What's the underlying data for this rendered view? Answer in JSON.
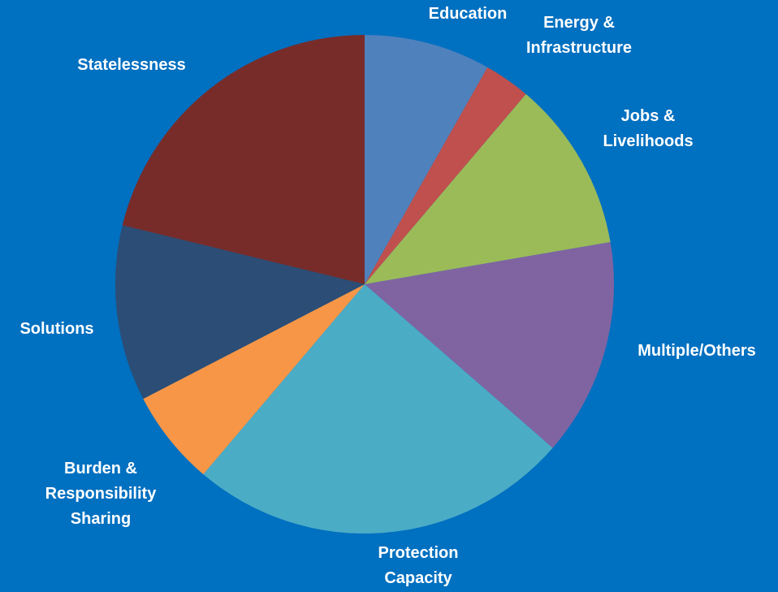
{
  "chart_data": {
    "type": "pie",
    "title": "",
    "start_angle_deg": 0,
    "direction": "clockwise",
    "background": "#0070C0",
    "label_color": "#FFFFFF",
    "slices": [
      {
        "name": "Education",
        "label_lines": [
          "Education"
        ],
        "value": 8.2,
        "color": "#4F81BD"
      },
      {
        "name": "Energy & Infrastructure",
        "label_lines": [
          "Energy &",
          "Infrastructure"
        ],
        "value": 3.0,
        "color": "#C0504D"
      },
      {
        "name": "Jobs & Livelihoods",
        "label_lines": [
          "Jobs &",
          "Livelihoods"
        ],
        "value": 11.1,
        "color": "#9BBB59"
      },
      {
        "name": "Multiple/Others",
        "label_lines": [
          "Multiple/Others"
        ],
        "value": 14.1,
        "color": "#8064A2"
      },
      {
        "name": "Protection Capacity",
        "label_lines": [
          "Protection",
          "Capacity"
        ],
        "value": 24.8,
        "color": "#4BACC6"
      },
      {
        "name": "Burden & Responsibility Sharing",
        "label_lines": [
          "Burden &",
          "Responsibility",
          "Sharing"
        ],
        "value": 6.2,
        "color": "#F79646"
      },
      {
        "name": "Solutions",
        "label_lines": [
          "Solutions"
        ],
        "value": 11.4,
        "color": "#2C4D75"
      },
      {
        "name": "Statelessness",
        "label_lines": [
          "Statelessness"
        ],
        "value": 21.2,
        "color": "#772C2A"
      }
    ]
  }
}
